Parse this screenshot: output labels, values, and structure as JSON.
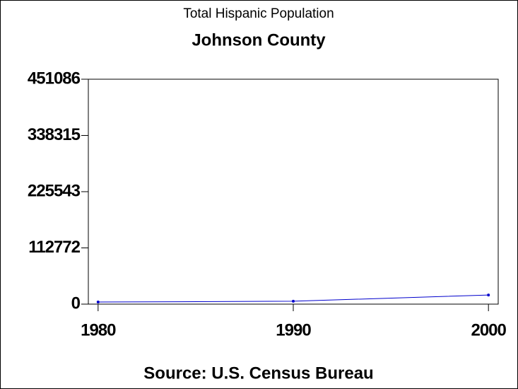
{
  "chart_data": {
    "type": "line",
    "title": "Total Hispanic Population",
    "subtitle": "Johnson County",
    "footnote": "Source: U.S. Census Bureau",
    "x": [
      1980,
      1990,
      2000
    ],
    "series": [
      {
        "name": "Total Hispanic Population",
        "color": "#0000cc",
        "values": [
          4200,
          5800,
          18300
        ]
      }
    ],
    "xlim": [
      1979.5,
      2000.5
    ],
    "xticks": [
      1980,
      1990,
      2000
    ],
    "ylim": [
      0,
      451086
    ],
    "yticks": [
      0,
      112772,
      225543,
      338315,
      451086
    ]
  }
}
